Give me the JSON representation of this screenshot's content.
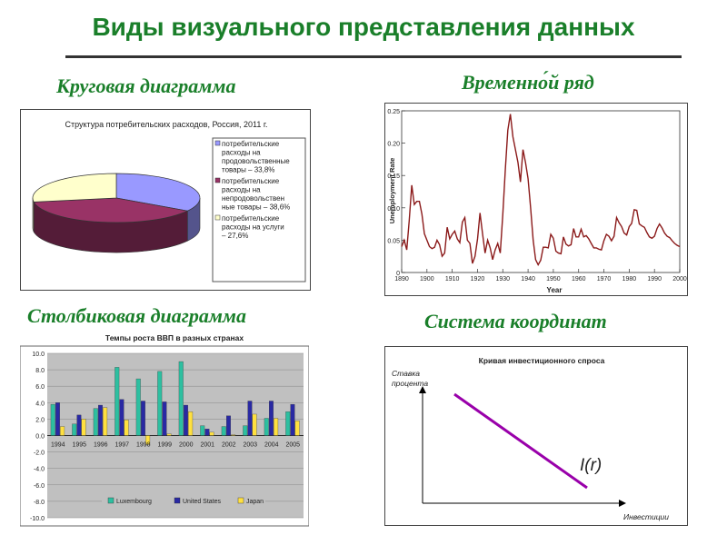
{
  "page": {
    "title": "Виды визуального представления данных",
    "sections": {
      "pie": "Круговая диаграмма",
      "timeseries": "Временно́й ряд",
      "bar": "Столбиковая диаграмма",
      "coords": "Система координат"
    }
  },
  "chart_data": [
    {
      "type": "pie",
      "title": "Структура потребительских расходов, Россия, 2011 г.",
      "legend_position": "right",
      "slices": [
        {
          "name": "потребительские расходы на продовольственные товары – 33,8%",
          "label_lines": [
            "потребительские",
            "расходы на",
            "продовольственные",
            "товары – 33,8%"
          ],
          "value": 33.8,
          "color": "#9999ff"
        },
        {
          "name": "потребительские расходы на непродовольственные товары – 38,6%",
          "label_lines": [
            "потребительские",
            "расходы на",
            "непродовольствен",
            "ные товары – 38,6%"
          ],
          "value": 38.6,
          "color": "#993366"
        },
        {
          "name": "потребительские расходы на услуги – 27,6%",
          "label_lines": [
            "потребительские",
            "расходы на услуги",
            "– 27,6%"
          ],
          "value": 27.6,
          "color": "#ffffcc"
        }
      ]
    },
    {
      "type": "line",
      "title": "",
      "xlabel": "Year",
      "ylabel": "Unemployment Rate",
      "xlim": [
        1890,
        2000
      ],
      "ylim": [
        0,
        0.25
      ],
      "xticks": [
        1890,
        1900,
        1910,
        1920,
        1930,
        1940,
        1950,
        1960,
        1970,
        1980,
        1990,
        2000
      ],
      "yticks": [
        0,
        0.05,
        0.1,
        0.15,
        0.2,
        0.25
      ],
      "ytick_labels": [
        "0",
        "0.05",
        "0.10",
        "0.15",
        "0.20",
        "0.25"
      ],
      "series": [
        {
          "color": "#8b1a1a",
          "x": [
            1890,
            1891,
            1892,
            1893,
            1894,
            1895,
            1896,
            1897,
            1898,
            1899,
            1900,
            1901,
            1902,
            1903,
            1904,
            1905,
            1906,
            1907,
            1908,
            1909,
            1910,
            1911,
            1912,
            1913,
            1914,
            1915,
            1916,
            1917,
            1918,
            1919,
            1920,
            1921,
            1922,
            1923,
            1924,
            1925,
            1926,
            1927,
            1928,
            1929,
            1930,
            1931,
            1932,
            1933,
            1934,
            1935,
            1936,
            1937,
            1938,
            1939,
            1940,
            1941,
            1942,
            1943,
            1944,
            1945,
            1946,
            1947,
            1948,
            1949,
            1950,
            1951,
            1952,
            1953,
            1954,
            1955,
            1956,
            1957,
            1958,
            1959,
            1960,
            1961,
            1962,
            1963,
            1964,
            1965,
            1966,
            1967,
            1968,
            1969,
            1970,
            1971,
            1972,
            1973,
            1974,
            1975,
            1976,
            1977,
            1978,
            1979,
            1980,
            1981,
            1982,
            1983,
            1984,
            1985,
            1986,
            1987,
            1988,
            1989,
            1990,
            1991,
            1992,
            1993,
            1994,
            1995,
            1996,
            1997,
            1998,
            1999,
            2000
          ],
          "y": [
            0.04,
            0.05,
            0.035,
            0.08,
            0.135,
            0.105,
            0.11,
            0.11,
            0.09,
            0.06,
            0.05,
            0.04,
            0.037,
            0.039,
            0.05,
            0.043,
            0.025,
            0.03,
            0.07,
            0.052,
            0.059,
            0.064,
            0.052,
            0.046,
            0.078,
            0.085,
            0.05,
            0.045,
            0.014,
            0.025,
            0.052,
            0.092,
            0.06,
            0.03,
            0.05,
            0.038,
            0.02,
            0.035,
            0.045,
            0.03,
            0.09,
            0.16,
            0.22,
            0.245,
            0.21,
            0.19,
            0.17,
            0.14,
            0.19,
            0.17,
            0.145,
            0.1,
            0.05,
            0.02,
            0.012,
            0.019,
            0.039,
            0.039,
            0.038,
            0.059,
            0.053,
            0.033,
            0.03,
            0.029,
            0.055,
            0.044,
            0.041,
            0.043,
            0.068,
            0.055,
            0.055,
            0.067,
            0.055,
            0.057,
            0.052,
            0.045,
            0.038,
            0.038,
            0.036,
            0.035,
            0.049,
            0.059,
            0.056,
            0.049,
            0.056,
            0.085,
            0.077,
            0.071,
            0.061,
            0.058,
            0.071,
            0.076,
            0.097,
            0.096,
            0.075,
            0.072,
            0.07,
            0.062,
            0.055,
            0.053,
            0.056,
            0.068,
            0.075,
            0.069,
            0.061,
            0.056,
            0.054,
            0.049,
            0.045,
            0.042,
            0.04
          ]
        }
      ]
    },
    {
      "type": "bar",
      "title": "Темпы роста ВВП в разных странах",
      "ylim": [
        -10,
        10
      ],
      "yticks": [
        -10,
        -8,
        -6,
        -4,
        -2,
        0,
        2,
        4,
        6,
        8,
        10
      ],
      "ytick_labels": [
        "-10.0",
        "-8.0",
        "-6.0",
        "-4.0",
        "-2.0",
        "0.0",
        "2.0",
        "4.0",
        "6.0",
        "8.0",
        "10.0"
      ],
      "grid": true,
      "legend_position": "bottom",
      "categories": [
        "1994",
        "1995",
        "1996",
        "1997",
        "1998",
        "1999",
        "2000",
        "2001",
        "2002",
        "2003",
        "2004",
        "2005"
      ],
      "series": [
        {
          "name": "Luxembourg",
          "color": "#2dbfa0",
          "values": [
            3.8,
            1.4,
            3.3,
            8.3,
            6.9,
            7.8,
            9.0,
            1.2,
            1.1,
            1.2,
            2.1,
            2.9
          ]
        },
        {
          "name": "United States",
          "color": "#2929a3",
          "values": [
            4.0,
            2.5,
            3.7,
            4.4,
            4.2,
            4.1,
            3.7,
            0.8,
            2.4,
            4.2,
            4.2,
            3.8
          ]
        },
        {
          "name": "Japan",
          "color": "#ffe040",
          "values": [
            1.1,
            2.0,
            3.4,
            1.9,
            -1.1,
            0.2,
            2.9,
            0.4,
            0.1,
            2.6,
            2.1,
            1.8
          ]
        }
      ]
    },
    {
      "type": "line",
      "title": "Кривая инвестиционного спроса",
      "xlabel": "Инвестиции",
      "ylabel": "Ставка процента",
      "ylabel_lines": [
        "Ставка",
        "процента"
      ],
      "series": [
        {
          "name": "I(r)",
          "label": "I(r)",
          "color": "#9900aa",
          "x": [
            0,
            1
          ],
          "y": [
            1,
            0
          ]
        }
      ]
    }
  ]
}
